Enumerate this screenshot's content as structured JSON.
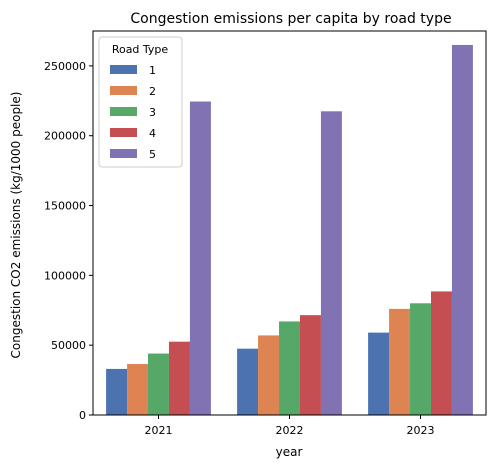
{
  "chart_data": {
    "type": "bar",
    "title": "Congestion emissions per capita by road type",
    "xlabel": "year",
    "ylabel": "Congestion CO2 emissions (kg/1000 people)",
    "categories": [
      "2021",
      "2022",
      "2023"
    ],
    "ylim": [
      0,
      275000
    ],
    "yticks": [
      0,
      50000,
      100000,
      150000,
      200000,
      250000
    ],
    "ytick_labels": [
      "0",
      "50000",
      "100000",
      "150000",
      "200000",
      "250000"
    ],
    "legend": {
      "title": "Road Type",
      "placement": "top-left"
    },
    "series": [
      {
        "name": "1",
        "color": "#4c72b0",
        "values": [
          33000,
          47500,
          59000
        ]
      },
      {
        "name": "2",
        "color": "#dd8452",
        "values": [
          36500,
          57000,
          76000
        ]
      },
      {
        "name": "3",
        "color": "#55a868",
        "values": [
          44000,
          67000,
          80000
        ]
      },
      {
        "name": "4",
        "color": "#c44e52",
        "values": [
          52500,
          71500,
          88500
        ]
      },
      {
        "name": "5",
        "color": "#8172b3",
        "values": [
          224500,
          217500,
          265000
        ]
      }
    ]
  }
}
